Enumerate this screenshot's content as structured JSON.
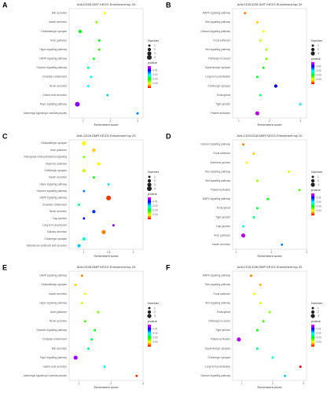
{
  "chart_data": [
    {
      "type": "scatter",
      "label": "A",
      "title": "Anti-CD28 DMT KEGG Enrichment top 20",
      "xlabel": "Enrichment score",
      "categories": [
        "Bile secretion",
        "Insulin secretion",
        "Glutamatergic synapse",
        "Axon guidance",
        "Hippo signaling pathway",
        "cAMP signaling pathway",
        "Oxytocin signaling pathway",
        "Circadian entrainment",
        "Renin secretion",
        "Gastric acid secretion",
        "Rap1 signaling pathway",
        "Adrenergic signaling in cardiomyocytes"
      ],
      "x": [
        1.8,
        1.5,
        0.9,
        1.6,
        1.6,
        1.4,
        1.2,
        1.3,
        1.2,
        1.9,
        0.8,
        3.0
      ],
      "sizes": [
        1,
        1,
        2,
        1,
        1,
        1,
        1,
        1,
        1,
        1,
        4,
        1
      ],
      "pvalues": [
        0.04,
        0.035,
        0.03,
        0.03,
        0.032,
        0.028,
        0.025,
        0.02,
        0.02,
        0.018,
        0.005,
        0.015
      ],
      "xlim": [
        0.5,
        3.2
      ],
      "xticks": [
        1,
        2,
        3
      ],
      "size_title": "Number",
      "size_legend": [
        1,
        2,
        3,
        4
      ],
      "color_title": "pvalue",
      "clim": [
        0,
        0.05
      ],
      "color_ticks": [
        0.01,
        0.02,
        0.03,
        0.04
      ],
      "colormap": [
        "#ff00ff",
        "#0000ff",
        "#00ffff",
        "#00ff00",
        "#ffff00",
        "#ff0000"
      ]
    },
    {
      "type": "scatter",
      "label": "B",
      "title": "Anti-CD3CD28 DMT KEGG Enrichment top 20",
      "xlabel": "Enrichment score",
      "categories": [
        "MAPK signaling pathway",
        "Ras signaling pathway",
        "Calcium signaling pathway",
        "Focal adhesion",
        "Wnt signaling pathway",
        "Pathways in cancer",
        "Dopaminergic synapse",
        "Long-term potentiation",
        "Cholinergic synapse",
        "Endocytosis",
        "Tight junction",
        "Platelet activation"
      ],
      "x": [
        1.2,
        1.6,
        1.8,
        1.7,
        1.9,
        1.9,
        1.8,
        1.6,
        2.2,
        1.7,
        3.0,
        1.6
      ],
      "sizes": [
        1,
        1,
        1,
        1,
        1,
        1,
        1,
        1,
        2,
        1,
        1,
        3
      ],
      "pvalues": [
        0.045,
        0.042,
        0.04,
        0.038,
        0.036,
        0.034,
        0.03,
        0.028,
        0.01,
        0.026,
        0.02,
        0.003
      ],
      "xlim": [
        0.8,
        3.2
      ],
      "xticks": [
        1,
        2,
        3
      ],
      "size_title": "Number",
      "size_legend": [
        1,
        2,
        3
      ],
      "color_title": "pvalue",
      "clim": [
        0,
        0.05
      ],
      "color_ticks": [
        0.01,
        0.02,
        0.03,
        0.04
      ],
      "colormap": [
        "#ff00ff",
        "#0000ff",
        "#00ffff",
        "#00ff00",
        "#ffff00",
        "#ff0000"
      ]
    },
    {
      "type": "scatter",
      "label": "C",
      "title": "Anti-CD28 DMR KEGG Enrichment top 20",
      "xlabel": "Enrichment score",
      "categories": [
        "Glutamatergic synapse",
        "Axon guidance",
        "Retrograde endocannabinoid signaling",
        "Morphine addiction",
        "GABAergic synapse",
        "Insulin secretion",
        "Hippo signaling pathway",
        "Oxytocin signaling pathway",
        "cAMP signaling pathway",
        "Circadian entrainment",
        "Renin secretion",
        "Gap junction",
        "Long-term depression",
        "Salivary secretion",
        "Cholinergic synapse",
        "Aldosterone synthesis and secretion"
      ],
      "x": [
        1.0,
        1.2,
        1.0,
        1.3,
        1.0,
        1.2,
        1.5,
        1.0,
        1.5,
        0.9,
        1.2,
        1.0,
        1.6,
        1.4,
        1.0,
        0.9
      ],
      "sizes": [
        3,
        2,
        1,
        2,
        2,
        1,
        1,
        1,
        4,
        1,
        2,
        1,
        1,
        3,
        2,
        2
      ],
      "pvalues": [
        0.04,
        0.042,
        0.035,
        0.04,
        0.038,
        0.03,
        0.02,
        0.015,
        0.048,
        0.025,
        0.012,
        0.01,
        0.005,
        0.045,
        0.022,
        0.018
      ],
      "xlim": [
        0.7,
        2.2
      ],
      "xticks": [
        1,
        1.5,
        2
      ],
      "size_title": "Number",
      "size_legend": [
        1,
        2,
        3,
        4
      ],
      "color_title": "pvalue",
      "clim": [
        0,
        0.05
      ],
      "color_ticks": [
        0.01,
        0.02,
        0.03,
        0.04
      ],
      "colormap": [
        "#ff00ff",
        "#0000ff",
        "#00ffff",
        "#00ff00",
        "#ffff00",
        "#ff0000"
      ]
    },
    {
      "type": "scatter",
      "label": "D",
      "title": "Anti-CD3CD28 DMR KEGG Enrichment top 20",
      "xlabel": "Enrichment score",
      "categories": [
        "Calcium signaling pathway",
        "Focal adhesion",
        "Adherens junction",
        "Ras signaling pathway",
        "Wnt signaling pathway",
        "Platelet activation",
        "MAPK signaling pathway",
        "Endocytosis",
        "Tight junction",
        "Gap junction",
        "Axon guidance",
        "Insulin secretion"
      ],
      "x": [
        1.2,
        1.5,
        1.3,
        2.5,
        1.6,
        2.8,
        1.9,
        1.6,
        1.5,
        1.2,
        1.2,
        2.3
      ],
      "sizes": [
        1,
        1,
        1,
        1,
        1,
        1,
        1,
        1,
        1,
        1,
        3,
        1
      ],
      "pvalues": [
        0.045,
        0.042,
        0.04,
        0.038,
        0.036,
        0.033,
        0.03,
        0.028,
        0.025,
        0.02,
        0.003,
        0.015
      ],
      "xlim": [
        0.9,
        3.0
      ],
      "xticks": [
        1,
        2,
        3
      ],
      "size_title": "Number",
      "size_legend": [
        1,
        2,
        3
      ],
      "color_title": "pvalue",
      "clim": [
        0,
        0.05
      ],
      "color_ticks": [
        0.01,
        0.02,
        0.03,
        0.04
      ],
      "colormap": [
        "#ff00ff",
        "#0000ff",
        "#00ffff",
        "#00ff00",
        "#ffff00",
        "#ff0000"
      ]
    },
    {
      "type": "scatter",
      "label": "E",
      "title": "Anti-CD28 DMP KEGG Enrichment top 20",
      "xlabel": "Enrichment score",
      "categories": [
        "cAMP signaling pathway",
        "Glutamatergic synapse",
        "Insulin secretion",
        "Hippo signaling pathway",
        "Axon guidance",
        "Renin secretion",
        "Oxytocin signaling pathway",
        "Circadian entrainment",
        "Bile secretion",
        "Rap1 signaling pathway",
        "Gastric acid secretion",
        "Adrenergic signaling in cardiomyocytes"
      ],
      "x": [
        1.1,
        0.9,
        1.2,
        1.1,
        1.6,
        1.2,
        1.5,
        1.4,
        1.3,
        0.9,
        1.8,
        2.8
      ],
      "sizes": [
        1,
        1,
        1,
        1,
        1,
        1,
        1,
        1,
        1,
        3,
        1,
        1
      ],
      "pvalues": [
        0.045,
        0.042,
        0.04,
        0.038,
        0.035,
        0.033,
        0.03,
        0.028,
        0.025,
        0.004,
        0.02,
        0.048
      ],
      "xlim": [
        0.7,
        3.0
      ],
      "xticks": [
        1,
        2,
        3
      ],
      "size_title": "Number",
      "size_legend": [
        1,
        2,
        3
      ],
      "color_title": "pvalue",
      "clim": [
        0,
        0.05
      ],
      "color_ticks": [
        0.01,
        0.02,
        0.03,
        0.04
      ],
      "colormap": [
        "#ff00ff",
        "#0000ff",
        "#00ffff",
        "#00ff00",
        "#ffff00",
        "#ff0000"
      ]
    },
    {
      "type": "scatter",
      "label": "F",
      "title": "Anti-CD3CD28 DMP KEGG Enrichment top 20",
      "xlabel": "Enrichment score",
      "categories": [
        "MAPK signaling pathway",
        "Ras signaling pathway",
        "Focal adhesion",
        "Wnt signaling pathway",
        "Endocytosis",
        "Pathways in cancer",
        "Tight junction",
        "Platelet activation",
        "Dopaminergic synapse",
        "Cholinergic synapse",
        "Long-term potentiation",
        "Calcium signaling pathway"
      ],
      "x": [
        1.3,
        1.6,
        1.4,
        1.6,
        1.9,
        1.7,
        1.5,
        0.9,
        1.5,
        2.0,
        2.9,
        2.4
      ],
      "sizes": [
        1,
        1,
        1,
        1,
        1,
        1,
        1,
        3,
        1,
        1,
        1,
        1
      ],
      "pvalues": [
        0.045,
        0.043,
        0.04,
        0.038,
        0.035,
        0.032,
        0.03,
        0.003,
        0.025,
        0.022,
        0.05,
        0.018
      ],
      "xlim": [
        0.7,
        3.1
      ],
      "xticks": [
        1,
        2,
        3
      ],
      "size_title": "Number",
      "size_legend": [
        1,
        2,
        3
      ],
      "color_title": "pvalue",
      "clim": [
        0,
        0.05
      ],
      "color_ticks": [
        0.01,
        0.02,
        0.03,
        0.04
      ],
      "colormap": [
        "#ff00ff",
        "#0000ff",
        "#00ffff",
        "#00ff00",
        "#ffff00",
        "#ff0000"
      ]
    }
  ]
}
